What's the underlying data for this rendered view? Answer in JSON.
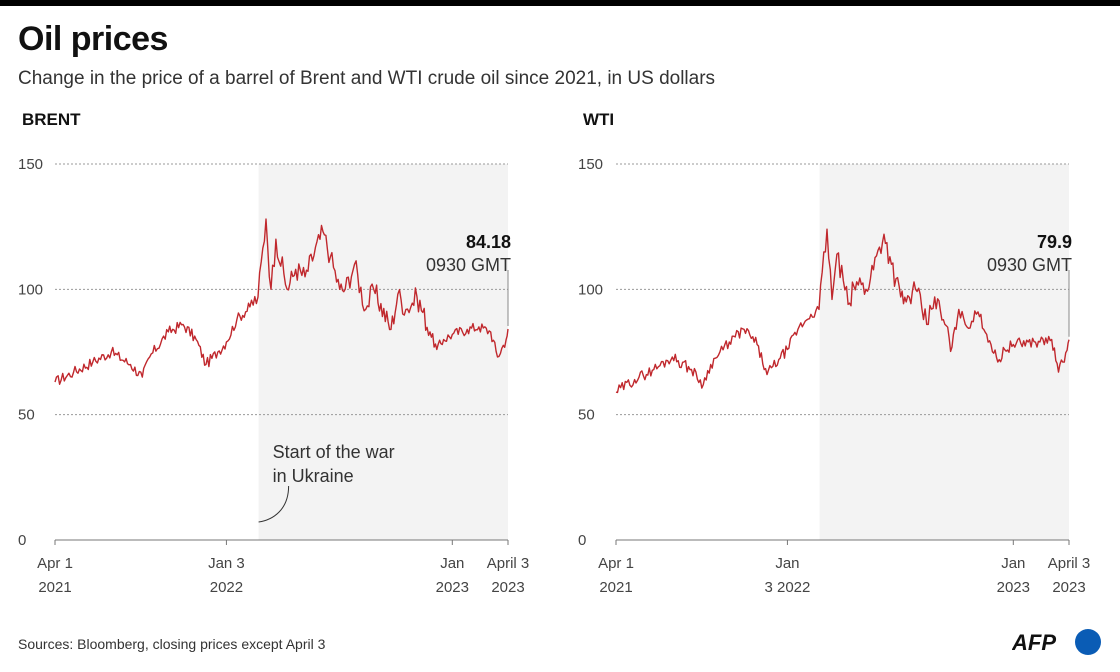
{
  "header": {
    "title": "Oil prices",
    "subtitle": "Change in the price of a barrel of Brent and WTI crude oil since 2021, in US dollars"
  },
  "footer": {
    "source": "Sources: Bloomberg, closing prices except April 3",
    "logo_text": "AFP"
  },
  "colors": {
    "line": "#c0282d",
    "shade": "#f3f3f3",
    "grid": "#999999",
    "logo_blue": "#0a5cb5"
  },
  "chart_data": [
    {
      "type": "line",
      "title": "BRENT",
      "xlabel": "",
      "ylabel": "",
      "ylim": [
        0,
        150
      ],
      "y_ticks": [
        0,
        50,
        100,
        150
      ],
      "x_tick_labels": [
        {
          "date": "2021-04-01",
          "line1": "Apr 1",
          "line2": "2021"
        },
        {
          "date": "2022-01-03",
          "line1": "Jan 3",
          "line2": "2022"
        },
        {
          "date": "2023-01-03",
          "line1": "Jan",
          "line2": "2023"
        },
        {
          "date": "2023-04-03",
          "line1": "April 3",
          "line2": "2023"
        }
      ],
      "shaded_from": "2022-02-24",
      "shade_annotation": [
        "Start of the war",
        "in Ukraine"
      ],
      "last_value": "84.18",
      "last_value_note": "0930 GMT",
      "series": [
        {
          "x": [
            "2021-04-01",
            "2021-05-01",
            "2021-06-01",
            "2021-07-01",
            "2021-08-01",
            "2021-08-20",
            "2021-09-01",
            "2021-10-01",
            "2021-10-25",
            "2021-11-15",
            "2021-12-01",
            "2021-12-20",
            "2022-01-03",
            "2022-01-20",
            "2022-02-10",
            "2022-02-23",
            "2022-03-08",
            "2022-03-16",
            "2022-03-24",
            "2022-04-11",
            "2022-04-25",
            "2022-05-10",
            "2022-06-08",
            "2022-06-20",
            "2022-07-05",
            "2022-07-14",
            "2022-07-29",
            "2022-08-16",
            "2022-08-29",
            "2022-09-26",
            "2022-10-07",
            "2022-10-20",
            "2022-11-07",
            "2022-11-28",
            "2022-12-09",
            "2022-12-20",
            "2023-01-03",
            "2023-01-27",
            "2023-02-15",
            "2023-03-06",
            "2023-03-17",
            "2023-03-31",
            "2023-04-03"
          ],
          "values": [
            63,
            67,
            71,
            75,
            70,
            65,
            73,
            83,
            86,
            80,
            70,
            75,
            79,
            88,
            93,
            97,
            128,
            100,
            120,
            100,
            108,
            105,
            123,
            113,
            100,
            100,
            110,
            92,
            100,
            84,
            98,
            92,
            97,
            83,
            76,
            80,
            82,
            84,
            85,
            83,
            73,
            79.9,
            84.18
          ]
        }
      ]
    },
    {
      "type": "line",
      "title": "WTI",
      "xlabel": "",
      "ylabel": "",
      "ylim": [
        0,
        150
      ],
      "y_ticks": [
        0,
        50,
        100,
        150
      ],
      "x_tick_labels": [
        {
          "date": "2021-04-01",
          "line1": "Apr 1",
          "line2": "2021"
        },
        {
          "date": "2022-01-03",
          "line1": "Jan",
          "line2": "3 2022"
        },
        {
          "date": "2023-01-03",
          "line1": "Jan",
          "line2": "2023"
        },
        {
          "date": "2023-04-03",
          "line1": "April 3",
          "line2": "2023"
        }
      ],
      "shaded_from": "2022-02-24",
      "last_value": "79.9",
      "last_value_note": "0930 GMT",
      "series": [
        {
          "x": [
            "2021-04-01",
            "2021-05-01",
            "2021-06-01",
            "2021-07-01",
            "2021-08-01",
            "2021-08-20",
            "2021-09-01",
            "2021-10-01",
            "2021-10-25",
            "2021-11-15",
            "2021-12-01",
            "2021-12-20",
            "2022-01-03",
            "2022-01-20",
            "2022-02-10",
            "2022-02-23",
            "2022-03-08",
            "2022-03-16",
            "2022-03-24",
            "2022-04-11",
            "2022-04-25",
            "2022-05-10",
            "2022-06-08",
            "2022-06-20",
            "2022-07-05",
            "2022-07-14",
            "2022-07-29",
            "2022-08-16",
            "2022-08-29",
            "2022-09-26",
            "2022-10-07",
            "2022-10-20",
            "2022-11-07",
            "2022-11-28",
            "2022-12-09",
            "2022-12-20",
            "2023-01-03",
            "2023-01-27",
            "2023-02-15",
            "2023-03-06",
            "2023-03-17",
            "2023-03-31",
            "2023-04-03"
          ],
          "values": [
            59,
            64,
            68,
            73,
            68,
            62,
            70,
            79,
            84,
            78,
            66,
            72,
            76,
            84,
            90,
            92,
            124,
            96,
            114,
            94,
            103,
            100,
            122,
            110,
            97,
            95,
            100,
            86,
            97,
            77,
            92,
            85,
            91,
            78,
            71,
            76,
            78,
            79,
            79,
            80,
            67,
            75.7,
            79.9
          ]
        }
      ]
    }
  ]
}
